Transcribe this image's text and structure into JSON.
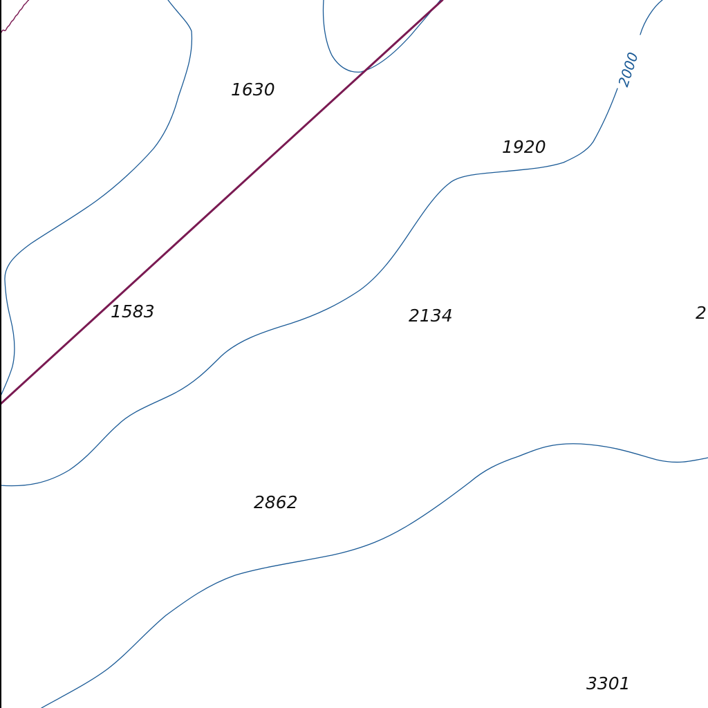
{
  "map": {
    "colors": {
      "background": "#ffffff",
      "contour": "#1a5a96",
      "boundary": "#7a1a52",
      "text": "#111111",
      "frame": "#000000"
    },
    "contour_label": "2000",
    "spot_elevations": [
      "1630",
      "1920",
      "1583",
      "2134",
      "2",
      "2862",
      "3301"
    ]
  }
}
